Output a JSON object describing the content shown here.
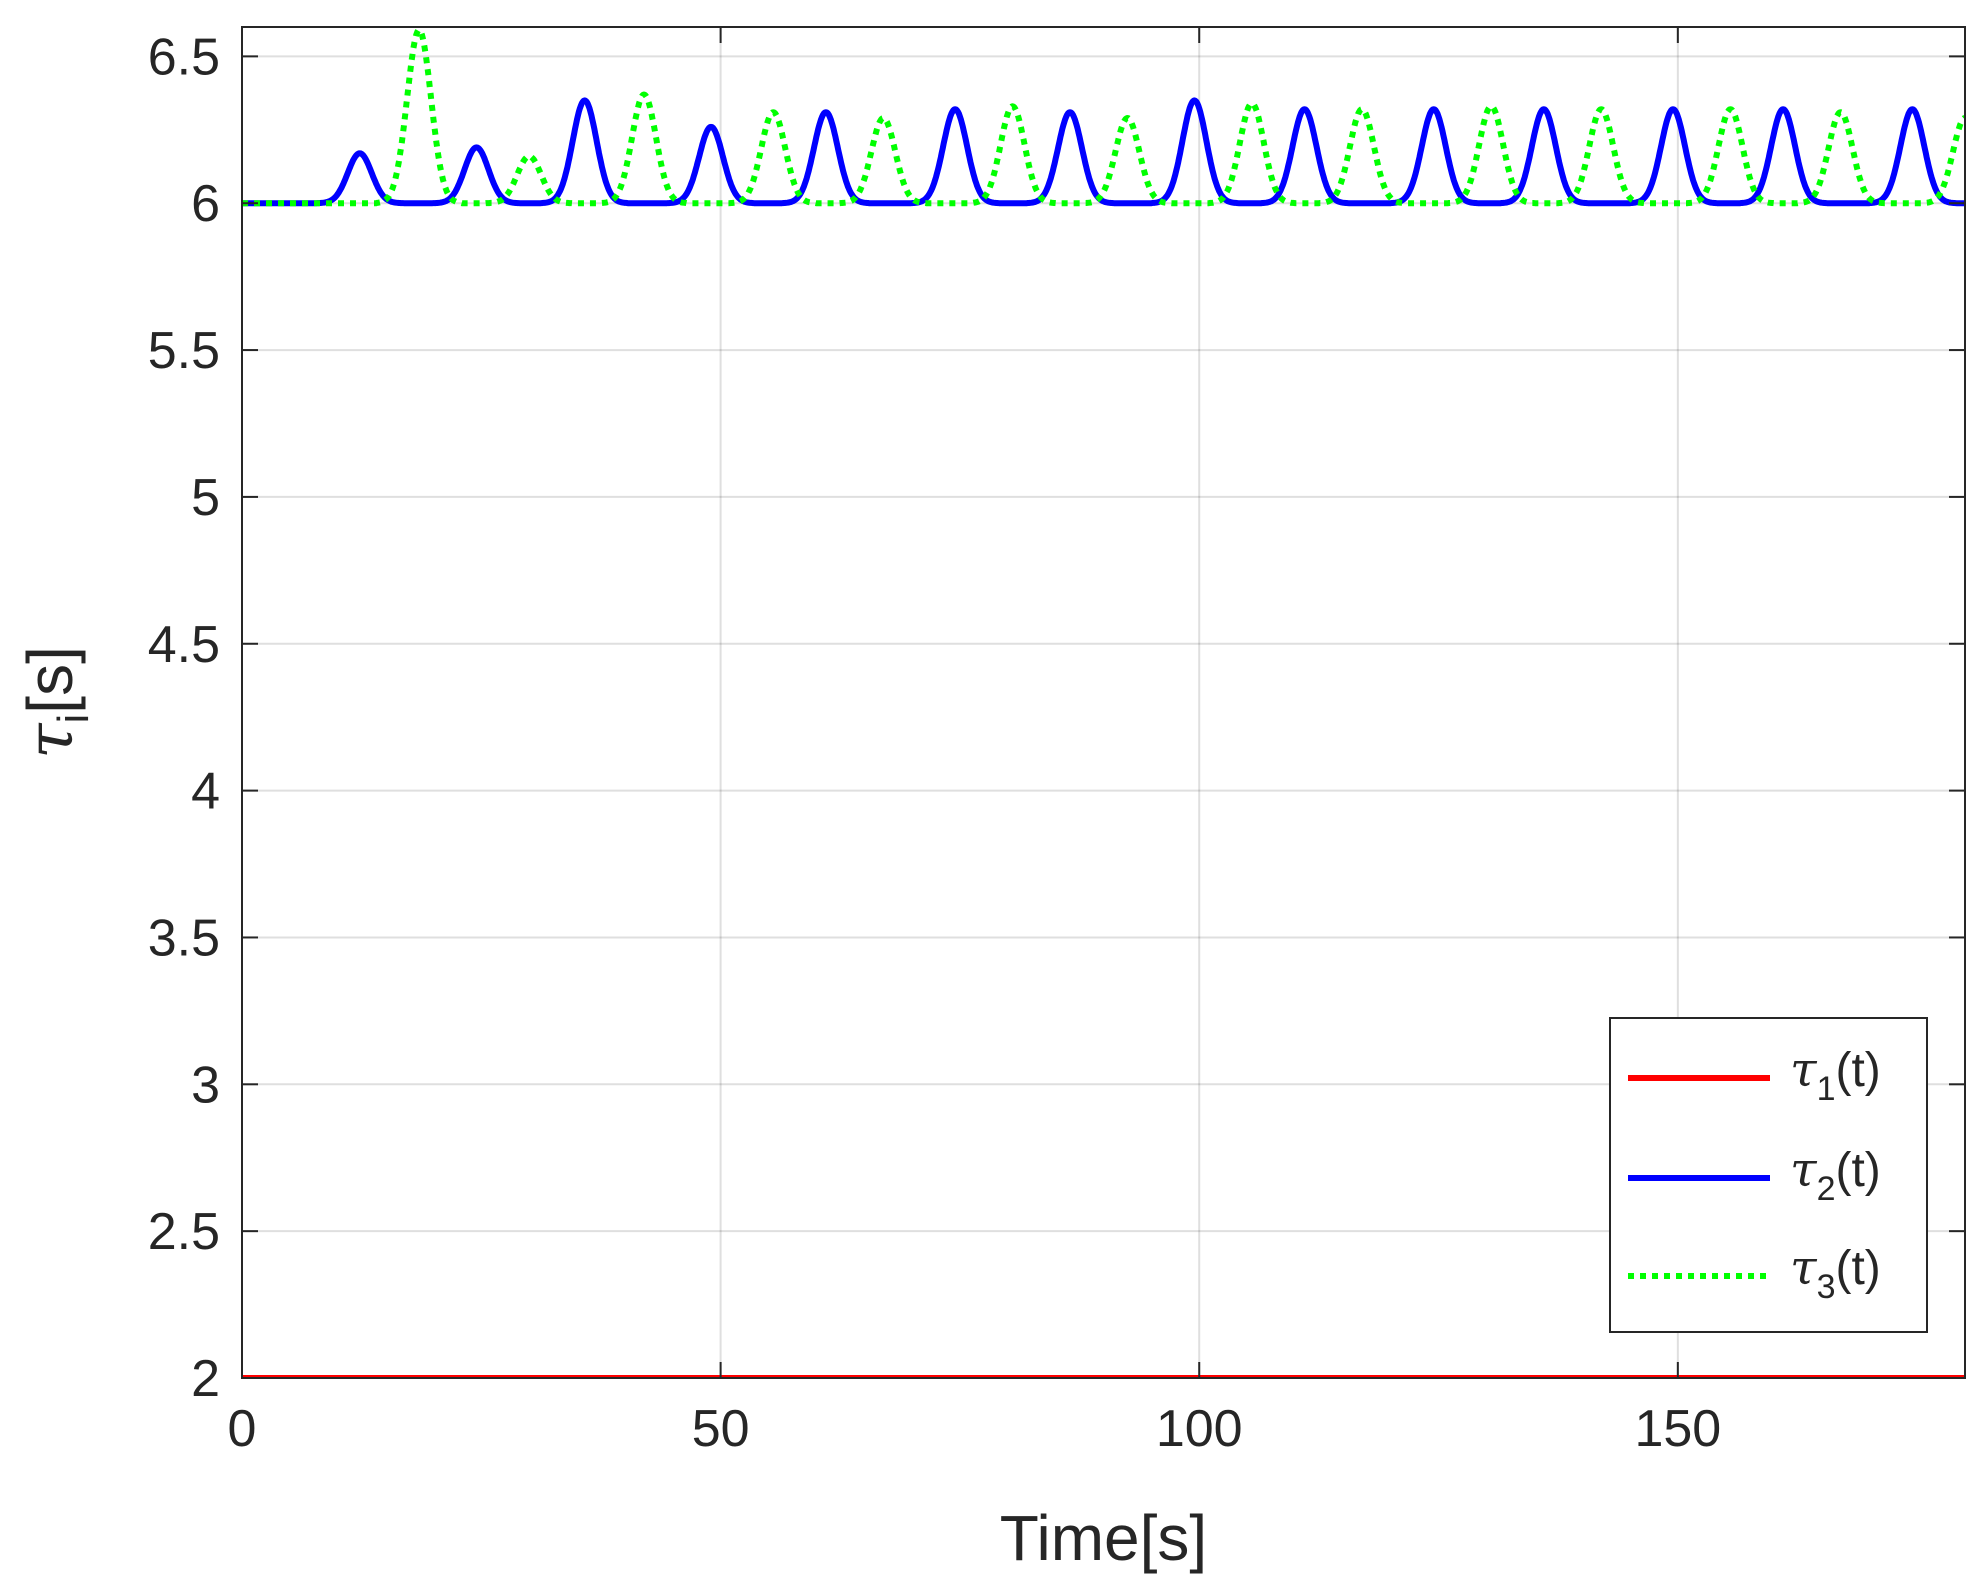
{
  "chart_data": {
    "type": "line",
    "xlabel": "Time[s]",
    "ylabel": {
      "symbol": "τ",
      "subscript": "i",
      "suffix": "[s]"
    },
    "xlim": [
      0,
      180
    ],
    "ylim": [
      2,
      6.6
    ],
    "xticks": [
      0,
      50,
      100,
      150
    ],
    "xtick_labels": [
      "0",
      "50",
      "100",
      "150"
    ],
    "yticks": [
      2,
      2.5,
      3,
      3.5,
      4,
      4.5,
      5,
      5.5,
      6,
      6.5
    ],
    "ytick_labels": [
      "2",
      "2.5",
      "3",
      "3.5",
      "4",
      "4.5",
      "5",
      "5.5",
      "6",
      "6.5"
    ],
    "grid": true,
    "legend_position": "bottom-right",
    "series": [
      {
        "name": {
          "symbol": "τ",
          "subscript": "1",
          "suffix": "(t)"
        },
        "color": "#ff0000",
        "style": "solid",
        "constant": 2,
        "x": [
          0,
          180
        ],
        "y": [
          2,
          2
        ]
      },
      {
        "name": {
          "symbol": "τ",
          "subscript": "2",
          "suffix": "(t)"
        },
        "color": "#0000ff",
        "style": "solid",
        "baseline": 6,
        "peaks": [
          {
            "t": 12.3,
            "value": 6.17
          },
          {
            "t": 24.5,
            "value": 6.19
          },
          {
            "t": 35.8,
            "value": 6.35
          },
          {
            "t": 49.0,
            "value": 6.26
          },
          {
            "t": 61.0,
            "value": 6.31
          },
          {
            "t": 74.5,
            "value": 6.32
          },
          {
            "t": 86.5,
            "value": 6.31
          },
          {
            "t": 99.5,
            "value": 6.35
          },
          {
            "t": 111.0,
            "value": 6.32
          },
          {
            "t": 124.5,
            "value": 6.32
          },
          {
            "t": 136.0,
            "value": 6.32
          },
          {
            "t": 149.5,
            "value": 6.32
          },
          {
            "t": 161.0,
            "value": 6.32
          },
          {
            "t": 174.5,
            "value": 6.32
          }
        ]
      },
      {
        "name": {
          "symbol": "τ",
          "subscript": "3",
          "suffix": "(t)"
        },
        "color": "#00ff00",
        "style": "dotted",
        "baseline": 6,
        "peaks": [
          {
            "t": 18.5,
            "value": 6.59
          },
          {
            "t": 30.0,
            "value": 6.16
          },
          {
            "t": 42.0,
            "value": 6.37
          },
          {
            "t": 55.5,
            "value": 6.31
          },
          {
            "t": 67.0,
            "value": 6.29
          },
          {
            "t": 80.5,
            "value": 6.33
          },
          {
            "t": 92.5,
            "value": 6.29
          },
          {
            "t": 105.5,
            "value": 6.34
          },
          {
            "t": 117.0,
            "value": 6.32
          },
          {
            "t": 130.5,
            "value": 6.33
          },
          {
            "t": 142.0,
            "value": 6.32
          },
          {
            "t": 155.5,
            "value": 6.32
          },
          {
            "t": 167.0,
            "value": 6.31
          },
          {
            "t": 180.0,
            "value": 6.29
          }
        ]
      }
    ]
  }
}
